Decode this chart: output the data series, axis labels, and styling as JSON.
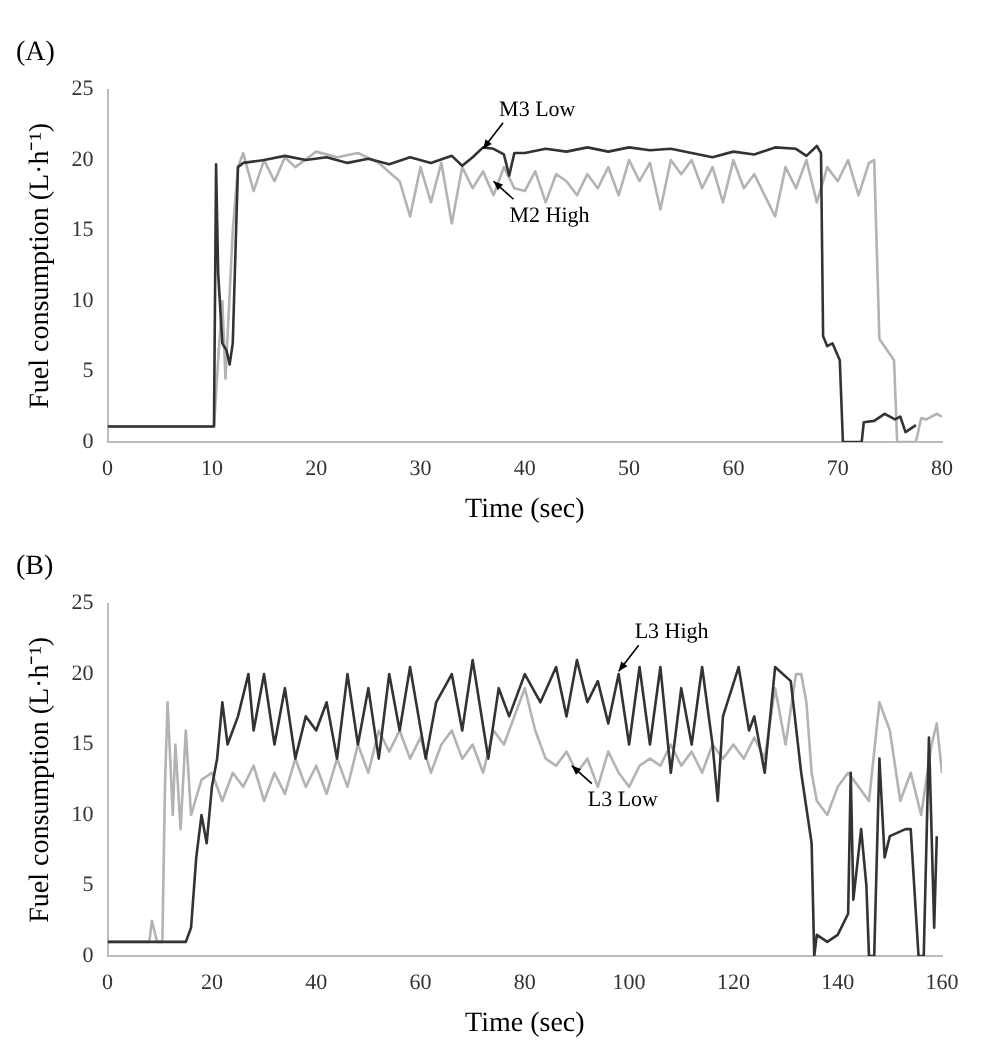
{
  "chart_data": [
    {
      "type": "line",
      "title": "(A)",
      "xlabel": "Time (sec)",
      "ylabel": "Fuel consumption (L·h⁻¹)",
      "xlim": [
        0,
        80
      ],
      "xticks": [
        0,
        10,
        20,
        30,
        40,
        50,
        60,
        70,
        80
      ],
      "ylim": [
        0,
        25
      ],
      "yticks": [
        0,
        5,
        10,
        15,
        20,
        25
      ],
      "grid": false,
      "legend": false,
      "marker": "none",
      "line_style": "solid",
      "annotations": [
        {
          "text": "M3 Low",
          "x": 36,
          "y": 20.8
        },
        {
          "text": "M2 High",
          "x": 37,
          "y": 18.5
        }
      ],
      "series": [
        {
          "color": "#333333",
          "x": [
            0,
            10.2,
            10.4,
            10.6,
            11,
            11.4,
            11.7,
            12,
            12.5,
            13,
            15,
            17,
            19,
            21,
            23,
            25,
            27,
            29,
            31,
            33,
            34,
            35,
            36,
            37,
            38,
            38.5,
            39,
            40,
            42,
            44,
            46,
            48,
            50,
            52,
            54,
            56,
            58,
            60,
            62,
            64,
            66,
            67,
            68,
            68.4,
            68.6,
            69,
            69.5,
            70.2,
            70.5,
            72.3,
            72.5,
            73.5,
            74.5,
            75.5,
            76,
            76.5,
            77.5
          ],
          "values": [
            1.1,
            1.1,
            19.7,
            12,
            7,
            6.5,
            5.5,
            7,
            19.5,
            19.8,
            20,
            20.3,
            20,
            20.2,
            19.8,
            20.1,
            19.7,
            20.2,
            19.8,
            20.3,
            19.6,
            20.2,
            20.9,
            20.8,
            20.4,
            18.9,
            20.5,
            20.5,
            20.8,
            20.6,
            20.9,
            20.6,
            20.9,
            20.7,
            20.8,
            20.5,
            20.2,
            20.6,
            20.4,
            20.9,
            20.8,
            20.3,
            21,
            20.5,
            7.5,
            6.8,
            7,
            5.8,
            0,
            0,
            1.4,
            1.5,
            2,
            1.6,
            1.8,
            0.7,
            1.2
          ]
        },
        {
          "color": "#b3b3b3",
          "x": [
            0,
            10.2,
            10.7,
            11,
            11.3,
            12,
            12.5,
            13,
            14,
            15,
            16,
            17,
            18,
            20,
            22,
            24,
            26,
            28,
            29,
            30,
            31,
            32,
            33,
            34,
            35,
            36,
            37,
            38,
            39,
            40,
            41,
            42,
            43,
            44,
            45,
            46,
            47,
            48,
            49,
            50,
            51,
            52,
            53,
            54,
            55,
            56,
            57,
            58,
            59,
            60,
            61,
            62,
            63,
            64,
            65,
            66,
            67,
            68,
            69,
            70,
            71,
            72,
            73,
            73.5,
            74,
            75.4,
            75.7,
            77.5,
            78,
            78.5,
            79.5,
            80
          ],
          "values": [
            1.1,
            1.1,
            7,
            10,
            4.5,
            15,
            19.5,
            20.5,
            17.8,
            20,
            18.5,
            20.2,
            19.5,
            20.6,
            20.2,
            20.5,
            19.8,
            18.5,
            16,
            19.5,
            17,
            19.8,
            15.5,
            19.5,
            18,
            19.2,
            17.5,
            19.5,
            18,
            17.8,
            19.2,
            17,
            19,
            18.5,
            17.5,
            19,
            18,
            19.5,
            17.5,
            20,
            18.5,
            19.8,
            16.5,
            20,
            19,
            20,
            18,
            19.5,
            17,
            20,
            18,
            19,
            17.5,
            16,
            19.5,
            18,
            20,
            17,
            19.5,
            18.5,
            20,
            17.5,
            19.8,
            20,
            7.3,
            5.8,
            0,
            0,
            1.7,
            1.6,
            2,
            1.8
          ]
        }
      ]
    },
    {
      "type": "line",
      "title": "(B)",
      "xlabel": "Time (sec)",
      "ylabel": "Fuel consumption (L·h⁻¹)",
      "xlim": [
        0,
        160
      ],
      "xticks": [
        0,
        20,
        40,
        60,
        80,
        100,
        120,
        140,
        160
      ],
      "ylim": [
        0,
        25
      ],
      "yticks": [
        0,
        5,
        10,
        15,
        20,
        25
      ],
      "grid": false,
      "legend": false,
      "marker": "none",
      "line_style": "solid",
      "annotations": [
        {
          "text": "L3 High",
          "x": 98,
          "y": 20.2
        },
        {
          "text": "L3 Low",
          "x": 89,
          "y": 13.5
        }
      ],
      "series": [
        {
          "color": "#333333",
          "x": [
            0,
            15,
            16,
            17,
            18,
            19,
            20,
            21,
            22,
            23,
            25,
            27,
            28,
            30,
            32,
            34,
            36,
            38,
            40,
            42,
            44,
            46,
            48,
            50,
            52,
            54,
            56,
            58,
            61,
            63,
            66,
            68,
            70,
            73,
            75,
            77,
            80,
            83,
            86,
            88,
            90,
            92,
            94,
            96,
            98,
            100,
            102,
            104,
            106,
            108,
            110,
            112,
            114,
            116,
            117,
            118,
            121,
            123,
            124,
            126,
            128,
            131,
            133,
            135,
            135.5,
            136,
            138,
            140,
            142,
            142.5,
            143,
            144.5,
            145.5,
            146,
            147,
            148,
            149,
            150,
            153,
            154,
            155.5,
            156.5,
            157.5,
            158.5,
            159
          ],
          "values": [
            1,
            1,
            2,
            7,
            10,
            8,
            12,
            14,
            18,
            15,
            17,
            20,
            16,
            20,
            15,
            19,
            14,
            17,
            16,
            18,
            14,
            20,
            15,
            19,
            14,
            20,
            16,
            20.5,
            14,
            18,
            20,
            16,
            21,
            14,
            19,
            17,
            20,
            18,
            20.5,
            17,
            21,
            18,
            19.5,
            16.5,
            20,
            15,
            20.5,
            15,
            20.5,
            13,
            19,
            15,
            20.5,
            15,
            11,
            17,
            20.5,
            16,
            17,
            13,
            20.5,
            19.5,
            13,
            8,
            0,
            1.5,
            1,
            1.5,
            3,
            13,
            4,
            9,
            5,
            0,
            0,
            14,
            7,
            8.5,
            9,
            9,
            0,
            0,
            15.5,
            2,
            8.5
          ]
        },
        {
          "color": "#b3b3b3",
          "x": [
            0,
            8,
            8.5,
            9.5,
            10.5,
            11,
            11.5,
            12.5,
            13,
            14,
            15,
            16,
            18,
            20,
            22,
            24,
            26,
            28,
            30,
            32,
            34,
            36,
            38,
            40,
            42,
            44,
            46,
            48,
            50,
            52,
            54,
            56,
            58,
            60,
            62,
            64,
            66,
            68,
            70,
            72,
            74,
            76,
            78,
            80,
            82,
            84,
            86,
            88,
            90,
            92,
            94,
            96,
            98,
            100,
            102,
            104,
            106,
            108,
            110,
            112,
            114,
            116,
            118,
            120,
            122,
            124,
            126,
            128,
            130,
            132,
            133,
            134,
            135,
            136,
            138,
            140,
            142,
            144,
            146,
            148,
            150,
            152,
            154,
            156,
            158,
            159,
            160
          ],
          "values": [
            1,
            1,
            2.5,
            1,
            1,
            12,
            18,
            10,
            15,
            9,
            16,
            10,
            12.5,
            13,
            11,
            13,
            12,
            13.5,
            11,
            13,
            11.5,
            14,
            12,
            13.5,
            11.5,
            14,
            12,
            15,
            13,
            16,
            14.5,
            16,
            14,
            15.5,
            13,
            15,
            16,
            14,
            15,
            13,
            16,
            15,
            17,
            19,
            16,
            14,
            13.5,
            14.5,
            13,
            14,
            12,
            14.5,
            13,
            12,
            13.5,
            14,
            13.5,
            15,
            13.5,
            14.5,
            13,
            15,
            14,
            15,
            14,
            15.5,
            14,
            19,
            15,
            20,
            20,
            18,
            13,
            11,
            10,
            12,
            13,
            12,
            11,
            18,
            16,
            11,
            13,
            10,
            15,
            16.5,
            13
          ]
        }
      ]
    }
  ]
}
